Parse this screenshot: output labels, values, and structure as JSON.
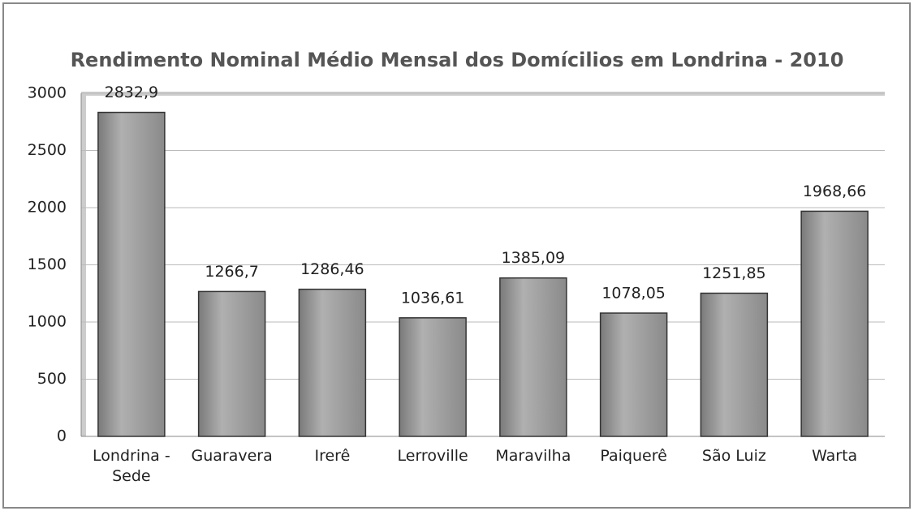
{
  "chart_data": {
    "type": "bar",
    "title": "Rendimento Nominal Médio Mensal dos Domícilios em Londrina -  2010",
    "categories": [
      "Londrina - Sede",
      "Guaravera",
      "Irerê",
      "Lerroville",
      "Maravilha",
      "Paiquerê",
      "São Luiz",
      "Warta"
    ],
    "values": [
      2832.9,
      1266.7,
      1286.46,
      1036.61,
      1385.09,
      1078.05,
      1251.85,
      1968.66
    ],
    "value_labels": [
      "2832,9",
      "1266,7",
      "1286,46",
      "1036,61",
      "1385,09",
      "1078,05",
      "1251,85",
      "1968,66"
    ],
    "color": "#9a9a9a",
    "ylim": [
      0,
      3000
    ],
    "yticks": [
      0,
      500,
      1000,
      1500,
      2000,
      2500,
      3000
    ],
    "grid": true
  }
}
